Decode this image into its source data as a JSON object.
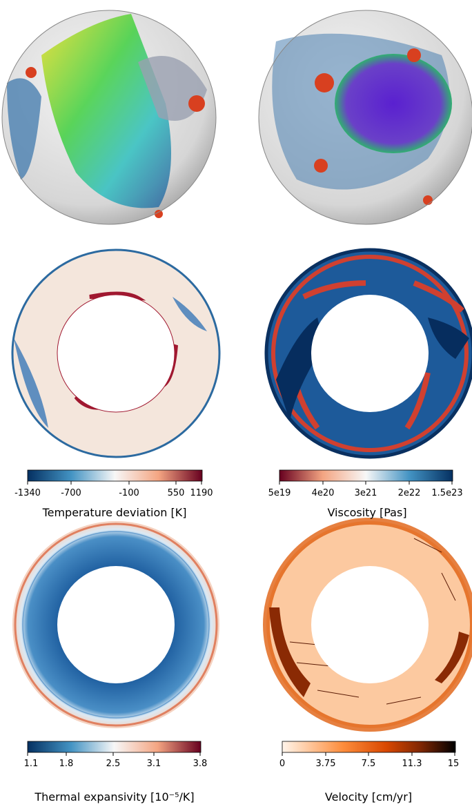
{
  "panels": [
    {
      "colorbar": {
        "ticks": [
          "-1340",
          "-700",
          "-100",
          "550",
          "1190"
        ],
        "label": "Temperature deviation [K]"
      }
    },
    {
      "colorbar": {
        "ticks": [
          "5e19",
          "4e20",
          "3e21",
          "2e22",
          "1.5e23"
        ],
        "label": "Viscosity [Pas]"
      }
    },
    {
      "colorbar": {
        "ticks": [
          "1.1",
          "1.8",
          "2.5",
          "3.1",
          "3.8"
        ],
        "label": "Thermal expansivity [10⁻⁵/K]"
      }
    },
    {
      "colorbar": {
        "ticks": [
          "0",
          "3.75",
          "7.5",
          "11.3",
          "15"
        ],
        "label": "Velocity [cm/yr]"
      }
    }
  ]
}
